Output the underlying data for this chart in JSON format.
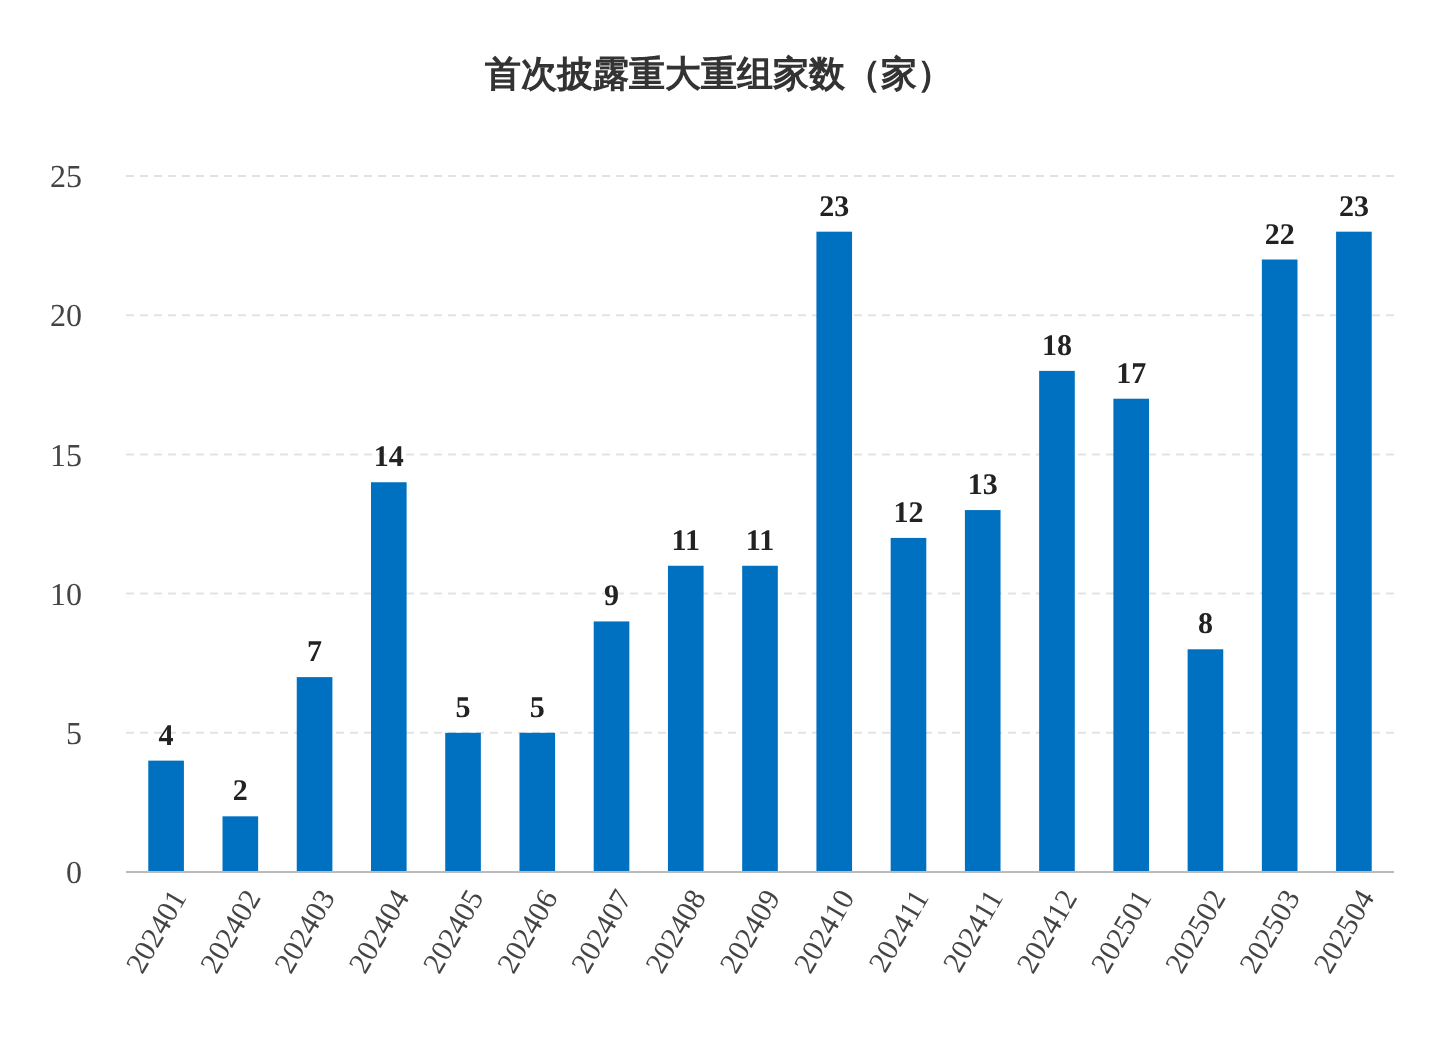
{
  "chart_data": {
    "type": "bar",
    "title": "首次披露重大重组家数（家）",
    "categories": [
      "202401",
      "202402",
      "202403",
      "202404",
      "202405",
      "202406",
      "202407",
      "202408",
      "202409",
      "202410",
      "202411",
      "202411",
      "202412",
      "202501",
      "202502",
      "202503",
      "202504"
    ],
    "values": [
      4,
      2,
      7,
      14,
      5,
      5,
      9,
      11,
      11,
      23,
      12,
      13,
      18,
      17,
      8,
      22,
      23
    ],
    "color": "#0070c0",
    "ylim": [
      0,
      25
    ],
    "yticks": [
      0,
      5,
      10,
      15,
      20,
      25
    ],
    "grid": "y",
    "data_labels": true
  }
}
